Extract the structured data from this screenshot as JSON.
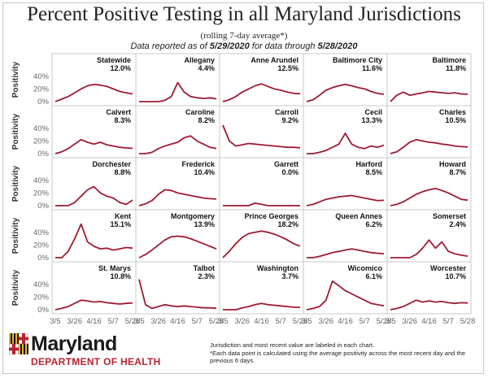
{
  "title": "Percent Positive Testing in all Maryland Jurisdictions",
  "subtitle": "(rolling 7-day average*)",
  "reported": {
    "prefix": "Data reported as of ",
    "as_of": "5/29/2020",
    "middle": " for data through ",
    "through": "5/28/2020"
  },
  "ylabel": "Positivity",
  "footnote": {
    "line1": "Jurisdiction and most recent value are labeled in each chart.",
    "line2": "*Each data point is calculated using the average positivity across the most recent day and the previous 6 days."
  },
  "logo": {
    "name": "Maryland",
    "department": "DEPARTMENT OF HEALTH"
  },
  "colors": {
    "line": "#9e1b32",
    "grid": "#c8c8c8",
    "tick": "#666666"
  },
  "chart_data": {
    "type": "line",
    "x_ticks": [
      "3/5",
      "3/26",
      "4/16",
      "5/7",
      "5/28"
    ],
    "y_ticks": [
      "0%",
      "20%",
      "40%"
    ],
    "ylim": [
      0,
      50
    ],
    "x": [
      "3/5",
      "3/12",
      "3/19",
      "3/26",
      "4/2",
      "4/9",
      "4/16",
      "4/23",
      "4/30",
      "5/7",
      "5/14",
      "5/21",
      "5/28"
    ],
    "series": [
      {
        "name": "Statewide",
        "label": "12.0%",
        "values": [
          0,
          4,
          8,
          14,
          20,
          25,
          27,
          26,
          24,
          20,
          16,
          14,
          12
        ]
      },
      {
        "name": "Allegany",
        "label": "4.4%",
        "values": [
          0,
          0,
          0,
          0,
          2,
          8,
          30,
          15,
          8,
          6,
          5,
          6,
          4.4
        ]
      },
      {
        "name": "Anne Arundel",
        "label": "12.5%",
        "values": [
          0,
          3,
          8,
          15,
          20,
          25,
          28,
          24,
          20,
          18,
          15,
          13,
          12.5
        ]
      },
      {
        "name": "Baltimore City",
        "label": "11.6%",
        "values": [
          0,
          3,
          10,
          18,
          22,
          25,
          27,
          25,
          22,
          20,
          16,
          13,
          11.6
        ]
      },
      {
        "name": "Baltimore",
        "label": "11.8%",
        "values": [
          0,
          10,
          15,
          10,
          12,
          14,
          16,
          15,
          14,
          13,
          14,
          12,
          11.8
        ]
      },
      {
        "name": "Calvert",
        "label": "8.3%",
        "values": [
          0,
          3,
          8,
          15,
          22,
          18,
          15,
          18,
          14,
          12,
          10,
          9,
          8.3
        ]
      },
      {
        "name": "Caroline",
        "label": "8.2%",
        "values": [
          0,
          0,
          2,
          8,
          12,
          15,
          18,
          25,
          28,
          20,
          15,
          10,
          8.2
        ]
      },
      {
        "name": "Carroll",
        "label": "9.2%",
        "values": [
          45,
          20,
          12,
          14,
          16,
          15,
          14,
          13,
          12,
          11,
          10,
          10,
          9.2
        ]
      },
      {
        "name": "Cecil",
        "label": "13.3%",
        "values": [
          0,
          0,
          2,
          5,
          10,
          15,
          32,
          15,
          10,
          8,
          12,
          10,
          13.3
        ]
      },
      {
        "name": "Charles",
        "label": "10.5%",
        "values": [
          0,
          3,
          10,
          18,
          22,
          20,
          18,
          17,
          15,
          14,
          12,
          11,
          10.5
        ]
      },
      {
        "name": "Dorchester",
        "label": "8.8%",
        "values": [
          0,
          0,
          0,
          5,
          15,
          25,
          30,
          20,
          15,
          12,
          5,
          2,
          8.8
        ]
      },
      {
        "name": "Frederick",
        "label": "10.4%",
        "values": [
          0,
          3,
          8,
          18,
          25,
          24,
          20,
          18,
          16,
          14,
          12,
          11,
          10.4
        ]
      },
      {
        "name": "Garrett",
        "label": "0.0%",
        "values": [
          0,
          0,
          0,
          0,
          0,
          4,
          2,
          0,
          0,
          0,
          0,
          0,
          0
        ]
      },
      {
        "name": "Harford",
        "label": "8.5%",
        "values": [
          0,
          2,
          6,
          10,
          12,
          14,
          15,
          16,
          14,
          12,
          10,
          8,
          8.5
        ]
      },
      {
        "name": "Howard",
        "label": "8.7%",
        "values": [
          0,
          2,
          6,
          12,
          18,
          22,
          25,
          27,
          24,
          20,
          15,
          10,
          8.7
        ]
      },
      {
        "name": "Kent",
        "label": "15.1%",
        "values": [
          0,
          0,
          10,
          30,
          53,
          25,
          18,
          14,
          15,
          12,
          14,
          16,
          15.1
        ]
      },
      {
        "name": "Montgomery",
        "label": "13.9%",
        "values": [
          0,
          5,
          12,
          20,
          28,
          33,
          34,
          33,
          30,
          26,
          22,
          18,
          13.9
        ]
      },
      {
        "name": "Prince Georges",
        "label": "18.2%",
        "values": [
          0,
          10,
          22,
          32,
          38,
          40,
          42,
          40,
          37,
          33,
          28,
          22,
          18.2
        ]
      },
      {
        "name": "Queen Annes",
        "label": "6.2%",
        "values": [
          0,
          0,
          2,
          5,
          8,
          10,
          12,
          14,
          12,
          10,
          8,
          7,
          6.2
        ]
      },
      {
        "name": "Somerset",
        "label": "2.4%",
        "values": [
          0,
          0,
          0,
          0,
          5,
          15,
          28,
          15,
          25,
          10,
          6,
          4,
          2.4
        ]
      },
      {
        "name": "St. Marys",
        "label": "10.8%",
        "values": [
          0,
          2,
          5,
          10,
          15,
          14,
          12,
          13,
          11,
          10,
          9,
          10,
          10.8
        ]
      },
      {
        "name": "Talbot",
        "label": "2.3%",
        "values": [
          48,
          8,
          2,
          5,
          8,
          6,
          5,
          6,
          5,
          4,
          3,
          3,
          2.3
        ]
      },
      {
        "name": "Washington",
        "label": "3.7%",
        "values": [
          0,
          0,
          0,
          3,
          5,
          8,
          10,
          8,
          7,
          6,
          5,
          4,
          3.7
        ]
      },
      {
        "name": "Wicomico",
        "label": "6.1%",
        "values": [
          0,
          2,
          5,
          15,
          45,
          38,
          30,
          25,
          20,
          15,
          10,
          8,
          6.1
        ]
      },
      {
        "name": "Worcester",
        "label": "10.7%",
        "values": [
          0,
          2,
          5,
          10,
          15,
          12,
          14,
          12,
          13,
          11,
          10,
          11,
          10.7
        ]
      }
    ]
  }
}
